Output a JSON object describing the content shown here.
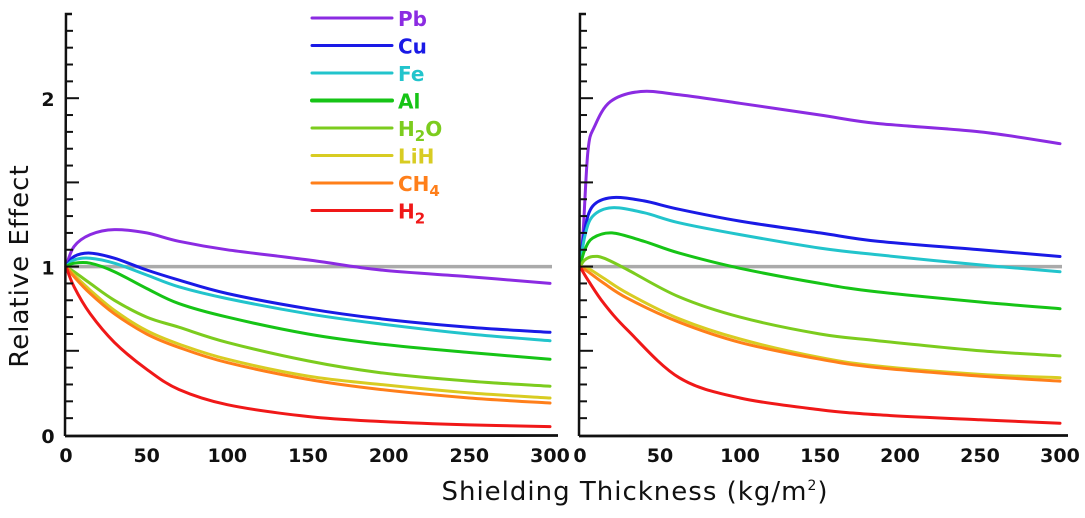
{
  "chart_data": [
    {
      "type": "line",
      "panel": "left",
      "title": "",
      "xlabel": "Shielding Thickness (kg/m²)",
      "ylabel": "Relative Effect",
      "xlim": [
        0,
        300
      ],
      "ylim": [
        0,
        2.5
      ],
      "x_ticks": [
        0,
        50,
        100,
        150,
        200,
        250,
        300
      ],
      "y_ticks": [
        0,
        1,
        2
      ],
      "reference_line": {
        "y": 1,
        "color": "#aaaaaa"
      },
      "grid": false,
      "series": [
        {
          "name": "Pb",
          "color": "#8b2be2",
          "x": [
            0,
            5,
            15,
            30,
            50,
            70,
            100,
            150,
            195,
            250,
            300
          ],
          "y": [
            1.0,
            1.12,
            1.19,
            1.22,
            1.2,
            1.15,
            1.1,
            1.04,
            0.98,
            0.94,
            0.9
          ]
        },
        {
          "name": "Cu",
          "color": "#1a1ae6",
          "x": [
            0,
            5,
            15,
            30,
            50,
            70,
            100,
            150,
            195,
            250,
            300
          ],
          "y": [
            1.0,
            1.06,
            1.08,
            1.05,
            0.98,
            0.92,
            0.84,
            0.75,
            0.69,
            0.64,
            0.61
          ]
        },
        {
          "name": "Fe",
          "color": "#22c4cc",
          "x": [
            0,
            5,
            15,
            30,
            50,
            70,
            100,
            150,
            195,
            250,
            300
          ],
          "y": [
            1.0,
            1.04,
            1.05,
            1.02,
            0.95,
            0.88,
            0.81,
            0.72,
            0.66,
            0.6,
            0.56
          ]
        },
        {
          "name": "Al",
          "color": "#16c416",
          "x": [
            0,
            5,
            15,
            30,
            50,
            70,
            100,
            150,
            195,
            250,
            300
          ],
          "y": [
            1.0,
            1.02,
            1.02,
            0.97,
            0.87,
            0.78,
            0.7,
            0.6,
            0.54,
            0.49,
            0.45
          ]
        },
        {
          "name": "H2O",
          "color": "#7ccc1e",
          "x": [
            0,
            5,
            15,
            30,
            50,
            70,
            100,
            150,
            195,
            250,
            300
          ],
          "y": [
            1.0,
            0.97,
            0.9,
            0.8,
            0.7,
            0.64,
            0.55,
            0.44,
            0.37,
            0.32,
            0.29
          ]
        },
        {
          "name": "LiH",
          "color": "#d8cc22",
          "x": [
            0,
            5,
            15,
            30,
            50,
            70,
            100,
            150,
            195,
            250,
            300
          ],
          "y": [
            1.0,
            0.95,
            0.86,
            0.74,
            0.62,
            0.54,
            0.45,
            0.35,
            0.3,
            0.25,
            0.22
          ]
        },
        {
          "name": "CH4",
          "color": "#ff7f1a",
          "x": [
            0,
            5,
            15,
            30,
            50,
            70,
            100,
            150,
            195,
            250,
            300
          ],
          "y": [
            1.0,
            0.94,
            0.84,
            0.72,
            0.6,
            0.52,
            0.43,
            0.33,
            0.27,
            0.22,
            0.19
          ]
        },
        {
          "name": "H2",
          "color": "#f01818",
          "x": [
            0,
            5,
            15,
            30,
            50,
            70,
            100,
            150,
            195,
            250,
            300
          ],
          "y": [
            1.0,
            0.88,
            0.72,
            0.55,
            0.39,
            0.27,
            0.18,
            0.11,
            0.08,
            0.06,
            0.05
          ]
        }
      ]
    },
    {
      "type": "line",
      "panel": "right",
      "title": "",
      "xlabel": "Shielding Thickness (kg/m²)",
      "ylabel": "",
      "xlim": [
        0,
        300
      ],
      "ylim": [
        0,
        2.5
      ],
      "x_ticks": [
        0,
        50,
        100,
        150,
        200,
        250,
        300
      ],
      "y_ticks": [],
      "reference_line": {
        "y": 1,
        "color": "#aaaaaa"
      },
      "grid": false,
      "series": [
        {
          "name": "Pb",
          "color": "#8b2be2",
          "x": [
            0,
            2,
            5,
            9,
            19,
            38,
            62,
            100,
            150,
            186,
            250,
            300
          ],
          "y": [
            1.0,
            1.21,
            1.69,
            1.83,
            1.98,
            2.04,
            2.02,
            1.97,
            1.9,
            1.85,
            1.8,
            1.73
          ]
        },
        {
          "name": "Cu",
          "color": "#1a1ae6",
          "x": [
            0,
            3,
            8,
            20,
            40,
            62,
            100,
            150,
            186,
            250,
            300
          ],
          "y": [
            1.0,
            1.22,
            1.36,
            1.41,
            1.39,
            1.34,
            1.27,
            1.2,
            1.15,
            1.1,
            1.06
          ]
        },
        {
          "name": "Fe",
          "color": "#22c4cc",
          "x": [
            0,
            3,
            8,
            20,
            40,
            62,
            100,
            150,
            186,
            250,
            300
          ],
          "y": [
            1.0,
            1.18,
            1.3,
            1.35,
            1.32,
            1.26,
            1.19,
            1.11,
            1.07,
            1.01,
            0.97
          ]
        },
        {
          "name": "Al",
          "color": "#16c416",
          "x": [
            0,
            3,
            8,
            20,
            40,
            62,
            100,
            150,
            186,
            250,
            300
          ],
          "y": [
            1.0,
            1.1,
            1.17,
            1.2,
            1.15,
            1.08,
            0.99,
            0.9,
            0.85,
            0.79,
            0.75
          ]
        },
        {
          "name": "H2O",
          "color": "#7ccc1e",
          "x": [
            0,
            3,
            8,
            15,
            30,
            62,
            100,
            150,
            186,
            250,
            300
          ],
          "y": [
            1.0,
            1.04,
            1.06,
            1.05,
            0.98,
            0.82,
            0.7,
            0.6,
            0.56,
            0.5,
            0.47
          ]
        },
        {
          "name": "LiH",
          "color": "#d8cc22",
          "x": [
            0,
            5,
            15,
            30,
            62,
            100,
            150,
            186,
            250,
            300
          ],
          "y": [
            1.0,
            0.99,
            0.93,
            0.84,
            0.69,
            0.57,
            0.46,
            0.41,
            0.36,
            0.34
          ]
        },
        {
          "name": "CH4",
          "color": "#ff7f1a",
          "x": [
            0,
            5,
            15,
            30,
            62,
            100,
            150,
            186,
            250,
            300
          ],
          "y": [
            1.0,
            0.97,
            0.9,
            0.81,
            0.67,
            0.55,
            0.45,
            0.4,
            0.35,
            0.32
          ]
        },
        {
          "name": "H2",
          "color": "#f01818",
          "x": [
            0,
            5,
            15,
            30,
            62,
            100,
            150,
            186,
            250,
            300
          ],
          "y": [
            1.0,
            0.92,
            0.78,
            0.62,
            0.34,
            0.22,
            0.15,
            0.12,
            0.09,
            0.07
          ]
        }
      ]
    }
  ],
  "legend": {
    "placement": "top-center-left",
    "entries": [
      {
        "label_main": "Pb",
        "label_sub": "",
        "label_tail": "",
        "color": "#8b2be2"
      },
      {
        "label_main": "Cu",
        "label_sub": "",
        "label_tail": "",
        "color": "#1a1ae6"
      },
      {
        "label_main": "Fe",
        "label_sub": "",
        "label_tail": "",
        "color": "#22c4cc"
      },
      {
        "label_main": "Al",
        "label_sub": "",
        "label_tail": "",
        "color": "#16c416"
      },
      {
        "label_main": "H",
        "label_sub": "2",
        "label_tail": "O",
        "color": "#7ccc1e"
      },
      {
        "label_main": "LiH",
        "label_sub": "",
        "label_tail": "",
        "color": "#d8cc22"
      },
      {
        "label_main": "CH",
        "label_sub": "4",
        "label_tail": "",
        "color": "#ff7f1a"
      },
      {
        "label_main": "H",
        "label_sub": "2",
        "label_tail": "",
        "color": "#f01818"
      }
    ]
  },
  "axes": {
    "x_title": "Shielding Thickness (kg/m²)",
    "x_title_main": "Shielding Thickness (kg/m",
    "x_title_sup": "2",
    "x_title_tail": ")",
    "y_title": "Relative Effect"
  }
}
